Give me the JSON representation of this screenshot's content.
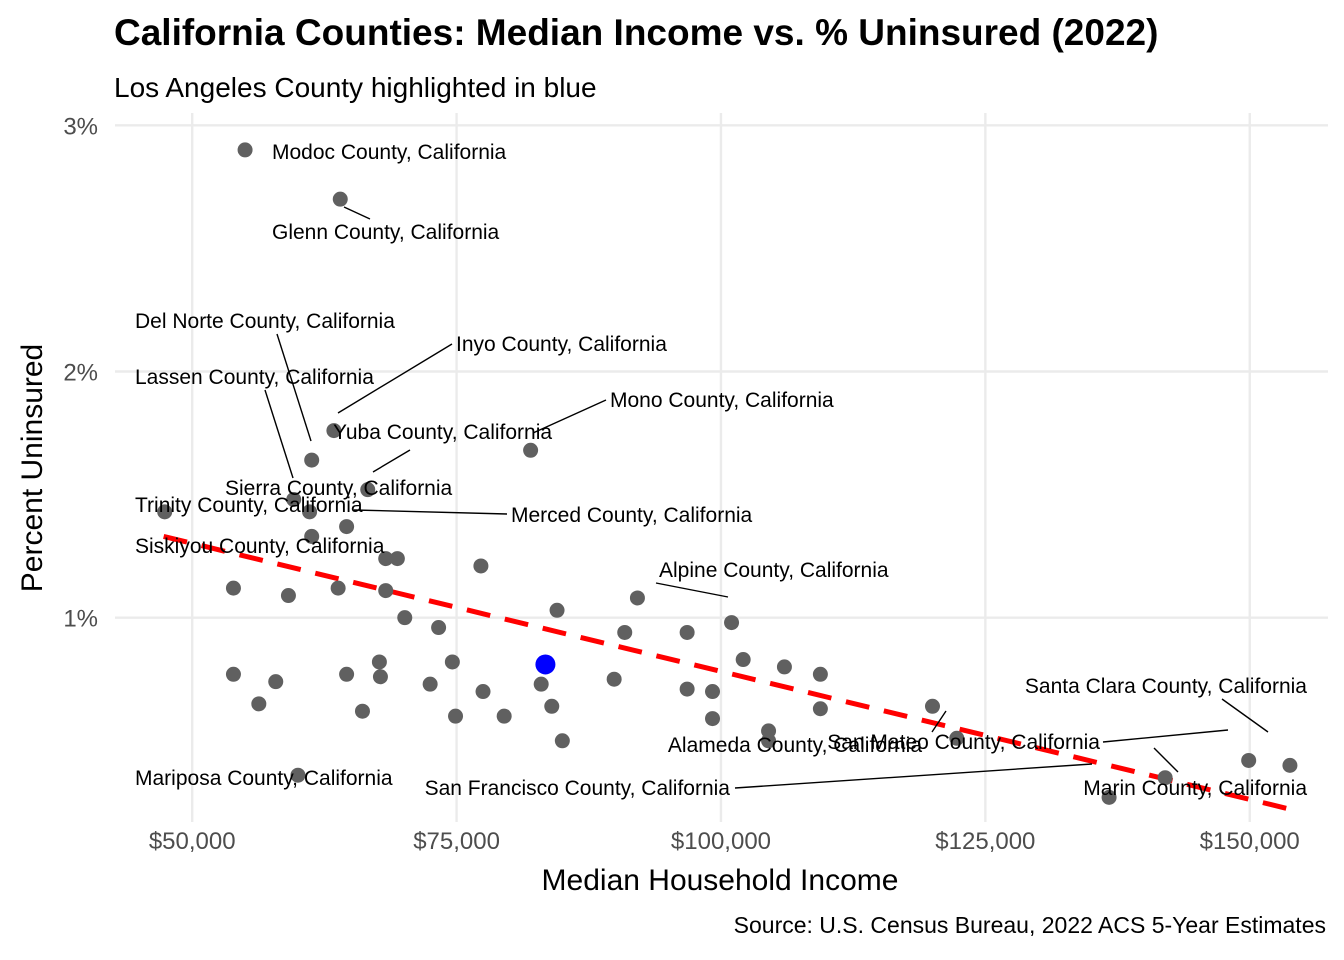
{
  "chart_data": {
    "type": "scatter",
    "title": "California Counties: Median Income vs. % Uninsured (2022)",
    "subtitle": "Los Angeles County highlighted in blue",
    "caption": "Source: U.S. Census Bureau, 2022 ACS 5-Year Estimates",
    "xlabel": "Median Household Income",
    "ylabel": "Percent Uninsured",
    "xlim": [
      42700,
      157400
    ],
    "ylim": [
      0.17,
      3.05
    ],
    "x_ticks": [
      50000,
      75000,
      100000,
      125000,
      150000
    ],
    "x_tick_labels": [
      "$50,000",
      "$75,000",
      "$100,000",
      "$125,000",
      "$150,000"
    ],
    "y_ticks": [
      1,
      2,
      3
    ],
    "y_tick_labels": [
      "1%",
      "2%",
      "3%"
    ],
    "grid": true,
    "legend": "none",
    "colors": {
      "points": "#606060",
      "highlight": "#0000ff",
      "trend": "#ff0000"
    },
    "trend_line": {
      "style": "dashed",
      "x": [
        47300,
        154000
      ],
      "y": [
        1.33,
        0.22
      ]
    },
    "highlighted": {
      "name": "Los Angeles County, California",
      "x": 83400,
      "y": 0.81
    },
    "labeled_points": [
      {
        "label": "Modoc County, California",
        "x": 55000,
        "y": 2.9
      },
      {
        "label": "Glenn County, California",
        "x": 64000,
        "y": 2.7
      },
      {
        "label": "Del Norte County, California",
        "x": 61300,
        "y": 1.64
      },
      {
        "label": "Inyo County, California",
        "x": 63400,
        "y": 1.76
      },
      {
        "label": "Lassen County, California",
        "x": 59600,
        "y": 1.48
      },
      {
        "label": "Mono County, California",
        "x": 82000,
        "y": 1.68
      },
      {
        "label": "Yuba County, California",
        "x": 66600,
        "y": 1.52
      },
      {
        "label": "Sierra County, California",
        "x": 61100,
        "y": 1.43
      },
      {
        "label": "Trinity County, California",
        "x": 47400,
        "y": 1.43
      },
      {
        "label": "Merced County, California",
        "x": 64600,
        "y": 1.37
      },
      {
        "label": "Siskiyou County, California",
        "x": 61300,
        "y": 1.33
      },
      {
        "label": "Alpine County, California",
        "x": 101000,
        "y": 0.98
      },
      {
        "label": "Santa Clara County, California",
        "x": 153800,
        "y": 0.4
      },
      {
        "label": "San Mateo County, California",
        "x": 149900,
        "y": 0.42
      },
      {
        "label": "Alameda County, California",
        "x": 122300,
        "y": 0.51
      },
      {
        "label": "Marin County, California",
        "x": 142000,
        "y": 0.35
      },
      {
        "label": "San Francisco County, California",
        "x": 136700,
        "y": 0.27
      },
      {
        "label": "Mariposa County, California",
        "x": 60000,
        "y": 0.36
      }
    ],
    "other_points": [
      {
        "x": 68300,
        "y": 1.24
      },
      {
        "x": 69400,
        "y": 1.24
      },
      {
        "x": 77300,
        "y": 1.21
      },
      {
        "x": 53900,
        "y": 1.12
      },
      {
        "x": 59100,
        "y": 1.09
      },
      {
        "x": 63800,
        "y": 1.12
      },
      {
        "x": 68300,
        "y": 1.11
      },
      {
        "x": 84500,
        "y": 1.03
      },
      {
        "x": 92100,
        "y": 1.08
      },
      {
        "x": 70100,
        "y": 1.0
      },
      {
        "x": 73300,
        "y": 0.96
      },
      {
        "x": 90900,
        "y": 0.94
      },
      {
        "x": 96800,
        "y": 0.94
      },
      {
        "x": 67700,
        "y": 0.82
      },
      {
        "x": 74600,
        "y": 0.82
      },
      {
        "x": 102100,
        "y": 0.83
      },
      {
        "x": 106000,
        "y": 0.8
      },
      {
        "x": 109400,
        "y": 0.77
      },
      {
        "x": 53900,
        "y": 0.77
      },
      {
        "x": 57900,
        "y": 0.74
      },
      {
        "x": 64600,
        "y": 0.77
      },
      {
        "x": 67800,
        "y": 0.76
      },
      {
        "x": 72500,
        "y": 0.73
      },
      {
        "x": 77500,
        "y": 0.7
      },
      {
        "x": 83000,
        "y": 0.73
      },
      {
        "x": 89900,
        "y": 0.75
      },
      {
        "x": 96800,
        "y": 0.71
      },
      {
        "x": 99200,
        "y": 0.7
      },
      {
        "x": 56300,
        "y": 0.65
      },
      {
        "x": 66100,
        "y": 0.62
      },
      {
        "x": 74900,
        "y": 0.6
      },
      {
        "x": 79500,
        "y": 0.6
      },
      {
        "x": 84000,
        "y": 0.64
      },
      {
        "x": 99200,
        "y": 0.59
      },
      {
        "x": 109400,
        "y": 0.63
      },
      {
        "x": 120000,
        "y": 0.64
      },
      {
        "x": 104500,
        "y": 0.54
      },
      {
        "x": 104500,
        "y": 0.5
      },
      {
        "x": 85000,
        "y": 0.5
      }
    ]
  }
}
